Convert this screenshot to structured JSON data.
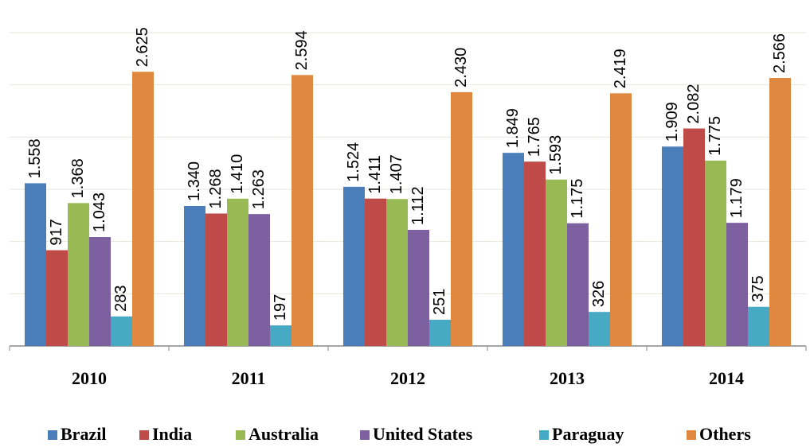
{
  "chart_data": {
    "type": "bar",
    "categories": [
      "2010",
      "2011",
      "2012",
      "2013",
      "2014"
    ],
    "series": [
      {
        "name": "Brazil",
        "color": "#4a7ebb",
        "values": [
          1558,
          1340,
          1524,
          1849,
          1909
        ],
        "value_labels": [
          "1.558",
          "1.340",
          "1.524",
          "1.849",
          "1.909"
        ]
      },
      {
        "name": "India",
        "color": "#be4b48",
        "values": [
          917,
          1268,
          1411,
          1765,
          2082
        ],
        "value_labels": [
          "917",
          "1.268",
          "1.411",
          "1.765",
          "2.082"
        ]
      },
      {
        "name": "Australia",
        "color": "#98b954",
        "values": [
          1368,
          1410,
          1407,
          1593,
          1775
        ],
        "value_labels": [
          "1.368",
          "1.410",
          "1.407",
          "1.593",
          "1.775"
        ]
      },
      {
        "name": "United States",
        "color": "#7d60a0",
        "values": [
          1043,
          1263,
          1112,
          1175,
          1179
        ],
        "value_labels": [
          "1.043",
          "1.263",
          "1.112",
          "1.175",
          "1.179"
        ]
      },
      {
        "name": "Paraguay",
        "color": "#46aac5",
        "values": [
          283,
          197,
          251,
          326,
          375
        ],
        "value_labels": [
          "283",
          "197",
          "251",
          "326",
          "375"
        ]
      },
      {
        "name": "Others",
        "color": "#e0883f",
        "values": [
          2625,
          2594,
          2430,
          2419,
          2566
        ],
        "value_labels": [
          "2.625",
          "2.594",
          "2.430",
          "2.419",
          "2.566"
        ]
      }
    ],
    "ylim": [
      0,
      3000
    ],
    "yticks": [
      0,
      500,
      1000,
      1500,
      2000,
      2500,
      3000
    ],
    "grid": true,
    "legend": "bottom"
  }
}
